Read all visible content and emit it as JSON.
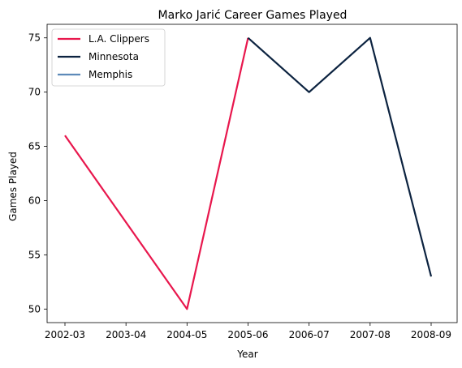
{
  "chart_data": {
    "type": "line",
    "title": "Marko Jarić Career Games Played",
    "xlabel": "Year",
    "ylabel": "Games Played",
    "categories": [
      "2002-03",
      "2003-04",
      "2004-05",
      "2005-06",
      "2006-07",
      "2007-08",
      "2008-09"
    ],
    "ylim": [
      48.75,
      76.25
    ],
    "yticks": [
      50,
      55,
      60,
      65,
      70,
      75
    ],
    "grid": false,
    "legend_position": "top-left",
    "series": [
      {
        "name": "L.A. Clippers",
        "color": "#e8174d",
        "x": [
          "2002-03",
          "2004-05",
          "2005-06"
        ],
        "values": [
          66,
          50,
          75
        ]
      },
      {
        "name": "Minnesota",
        "color": "#0c2340",
        "x": [
          "2005-06",
          "2006-07",
          "2007-08",
          "2008-09"
        ],
        "values": [
          75,
          70,
          75,
          53
        ]
      },
      {
        "name": "Memphis",
        "color": "#5d8ab9",
        "x": [],
        "values": []
      }
    ]
  }
}
